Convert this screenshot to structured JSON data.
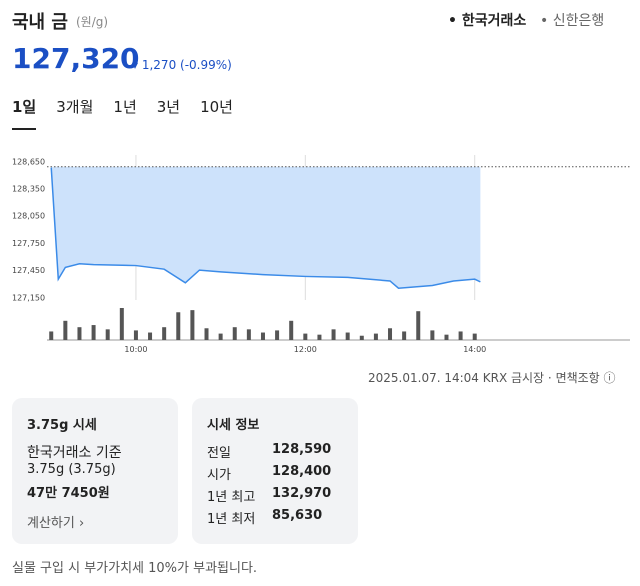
{
  "header": {
    "title": "국내 금",
    "unit": "(원/g)",
    "sources": [
      "한국거래소",
      "신한은행"
    ]
  },
  "price": {
    "value": "127,320",
    "change": "1,270",
    "change_pct": "(-0.99%)"
  },
  "periods": [
    "1일",
    "3개월",
    "1년",
    "3년",
    "10년"
  ],
  "chart_data": {
    "type": "area",
    "color": "#3b8be8",
    "fill": "#cde2fb",
    "x": [
      "09:00",
      "09:05",
      "09:10",
      "09:20",
      "09:30",
      "10:00",
      "10:20",
      "10:35",
      "10:45",
      "11:00",
      "11:30",
      "12:00",
      "12:30",
      "13:00",
      "13:06",
      "13:30",
      "13:45",
      "14:00",
      "14:04"
    ],
    "values": [
      128580,
      127350,
      127480,
      127520,
      127510,
      127500,
      127460,
      127310,
      127450,
      127430,
      127400,
      127380,
      127370,
      127330,
      127250,
      127280,
      127330,
      127350,
      127320
    ],
    "xlim": [
      "08:57",
      "15:50"
    ],
    "xticks": [
      "10:00",
      "12:00",
      "14:00"
    ],
    "ylim": [
      127120,
      128720
    ],
    "yticks": [
      {
        "value": 128650,
        "label": "128,650"
      },
      {
        "value": 128350,
        "label": "128,350"
      },
      {
        "value": 128050,
        "label": "128,050"
      },
      {
        "value": 127750,
        "label": "127,750"
      },
      {
        "value": 127450,
        "label": "127,450"
      },
      {
        "value": 127150,
        "label": "127,150"
      }
    ],
    "volume": {
      "color": "#555555",
      "x": [
        "09:00",
        "09:10",
        "09:20",
        "09:30",
        "09:40",
        "09:50",
        "10:00",
        "10:10",
        "10:20",
        "10:30",
        "10:40",
        "10:50",
        "11:00",
        "11:10",
        "11:20",
        "11:30",
        "11:40",
        "11:50",
        "12:00",
        "12:10",
        "12:20",
        "12:30",
        "12:40",
        "12:50",
        "13:00",
        "13:10",
        "13:20",
        "13:30",
        "13:40",
        "13:50",
        "14:00"
      ],
      "values": [
        8,
        18,
        12,
        14,
        10,
        30,
        9,
        7,
        12,
        26,
        28,
        11,
        6,
        12,
        10,
        7,
        9,
        18,
        6,
        5,
        10,
        7,
        4,
        6,
        11,
        8,
        27,
        9,
        5,
        8,
        6
      ]
    }
  },
  "footer_meta": {
    "timestamp": "2025.01.07. 14:04 KRX 금시장",
    "disclaimer": "면책조항"
  },
  "card1": {
    "title": "3.75g 시세",
    "line1": "한국거래소 기준",
    "line2": "3.75g (3.75g)",
    "amount": "47만 7450원",
    "link": "계산하기"
  },
  "info": {
    "title": "시세 정보",
    "rows": [
      [
        "전일",
        "128,590"
      ],
      [
        "시가",
        "128,400"
      ],
      [
        "1년 최고",
        "132,970"
      ],
      [
        "1년 최저",
        "85,630"
      ]
    ]
  },
  "note": "실물 구입 시 부가가치세 10%가 부과됩니다."
}
